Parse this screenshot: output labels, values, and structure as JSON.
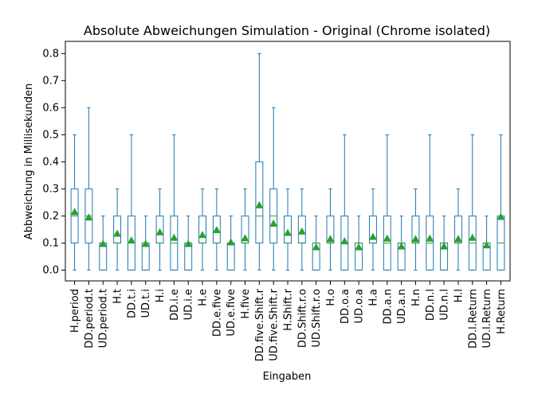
{
  "chart_data": {
    "type": "boxplot",
    "title": "Absolute Abweichungen Simulation - Original (Chrome isolated)",
    "xlabel": "Eingaben",
    "ylabel": "Abbweichung in Millisekunden",
    "ylim": [
      -0.04,
      0.845
    ],
    "yticks": [
      0.0,
      0.1,
      0.2,
      0.3,
      0.4,
      0.5,
      0.6,
      0.7,
      0.8
    ],
    "ytick_labels": [
      "0.0",
      "0.1",
      "0.2",
      "0.3",
      "0.4",
      "0.5",
      "0.6",
      "0.7",
      "0.8"
    ],
    "box_color": "#1f77b4",
    "median_color": "#2ca02c",
    "mean_marker_color": "#2ca02c",
    "categories": [
      "H.period",
      "DD.period.t",
      "UD.period.t",
      "H.t",
      "DD.t.i",
      "UD.t.i",
      "H.i",
      "DD.i.e",
      "UD.i.e",
      "H.e",
      "DD.e.five",
      "UD.e.five",
      "H.five",
      "DD.five.Shift.r",
      "UD.five.Shift.r",
      "H.Shift.r",
      "DD.Shift.r.o",
      "UD.Shift.r.o",
      "H.o",
      "DD.o.a",
      "UD.o.a",
      "H.a",
      "DD.a.n",
      "UD.a.n",
      "H.n",
      "DD.n.l",
      "UD.n.l",
      "H.l",
      "DD.l.Return",
      "UD.l.Return",
      "H.Return"
    ],
    "boxes": [
      {
        "whislo": 0.0,
        "q1": 0.1,
        "med": 0.2,
        "q3": 0.3,
        "whishi": 0.5,
        "mean": 0.215
      },
      {
        "whislo": 0.0,
        "q1": 0.1,
        "med": 0.2,
        "q3": 0.3,
        "whishi": 0.6,
        "mean": 0.195
      },
      {
        "whislo": 0.0,
        "q1": 0.0,
        "med": 0.1,
        "q3": 0.1,
        "whishi": 0.2,
        "mean": 0.097
      },
      {
        "whislo": 0.0,
        "q1": 0.1,
        "med": 0.1,
        "q3": 0.2,
        "whishi": 0.3,
        "mean": 0.135
      },
      {
        "whislo": 0.0,
        "q1": 0.0,
        "med": 0.1,
        "q3": 0.2,
        "whishi": 0.5,
        "mean": 0.11
      },
      {
        "whislo": 0.0,
        "q1": 0.0,
        "med": 0.1,
        "q3": 0.1,
        "whishi": 0.2,
        "mean": 0.097
      },
      {
        "whislo": 0.0,
        "q1": 0.1,
        "med": 0.1,
        "q3": 0.2,
        "whishi": 0.3,
        "mean": 0.14
      },
      {
        "whislo": 0.0,
        "q1": 0.0,
        "med": 0.1,
        "q3": 0.2,
        "whishi": 0.5,
        "mean": 0.12
      },
      {
        "whislo": 0.0,
        "q1": 0.0,
        "med": 0.1,
        "q3": 0.1,
        "whishi": 0.2,
        "mean": 0.097
      },
      {
        "whislo": 0.0,
        "q1": 0.1,
        "med": 0.1,
        "q3": 0.2,
        "whishi": 0.3,
        "mean": 0.13
      },
      {
        "whislo": 0.0,
        "q1": 0.1,
        "med": 0.1,
        "q3": 0.2,
        "whishi": 0.3,
        "mean": 0.148
      },
      {
        "whislo": 0.0,
        "q1": 0.0,
        "med": 0.1,
        "q3": 0.1,
        "whishi": 0.2,
        "mean": 0.103
      },
      {
        "whislo": 0.0,
        "q1": 0.1,
        "med": 0.1,
        "q3": 0.2,
        "whishi": 0.3,
        "mean": 0.118
      },
      {
        "whislo": 0.0,
        "q1": 0.1,
        "med": 0.2,
        "q3": 0.4,
        "whishi": 0.8,
        "mean": 0.24
      },
      {
        "whislo": 0.0,
        "q1": 0.1,
        "med": 0.2,
        "q3": 0.3,
        "whishi": 0.6,
        "mean": 0.172
      },
      {
        "whislo": 0.0,
        "q1": 0.1,
        "med": 0.1,
        "q3": 0.2,
        "whishi": 0.3,
        "mean": 0.138
      },
      {
        "whislo": 0.0,
        "q1": 0.1,
        "med": 0.1,
        "q3": 0.2,
        "whishi": 0.3,
        "mean": 0.143
      },
      {
        "whislo": 0.0,
        "q1": 0.0,
        "med": 0.1,
        "q3": 0.1,
        "whishi": 0.2,
        "mean": 0.085
      },
      {
        "whislo": 0.0,
        "q1": 0.1,
        "med": 0.1,
        "q3": 0.2,
        "whishi": 0.3,
        "mean": 0.115
      },
      {
        "whislo": 0.0,
        "q1": 0.0,
        "med": 0.1,
        "q3": 0.2,
        "whishi": 0.5,
        "mean": 0.107
      },
      {
        "whislo": 0.0,
        "q1": 0.0,
        "med": 0.1,
        "q3": 0.1,
        "whishi": 0.2,
        "mean": 0.085
      },
      {
        "whislo": 0.0,
        "q1": 0.1,
        "med": 0.1,
        "q3": 0.2,
        "whishi": 0.3,
        "mean": 0.123
      },
      {
        "whislo": 0.0,
        "q1": 0.0,
        "med": 0.1,
        "q3": 0.2,
        "whishi": 0.5,
        "mean": 0.117
      },
      {
        "whislo": 0.0,
        "q1": 0.0,
        "med": 0.1,
        "q3": 0.1,
        "whishi": 0.2,
        "mean": 0.088
      },
      {
        "whislo": 0.0,
        "q1": 0.1,
        "med": 0.1,
        "q3": 0.2,
        "whishi": 0.3,
        "mean": 0.115
      },
      {
        "whislo": 0.0,
        "q1": 0.0,
        "med": 0.1,
        "q3": 0.2,
        "whishi": 0.5,
        "mean": 0.117
      },
      {
        "whislo": 0.0,
        "q1": 0.0,
        "med": 0.1,
        "q3": 0.1,
        "whishi": 0.2,
        "mean": 0.088
      },
      {
        "whislo": 0.0,
        "q1": 0.1,
        "med": 0.1,
        "q3": 0.2,
        "whishi": 0.3,
        "mean": 0.115
      },
      {
        "whislo": 0.0,
        "q1": 0.0,
        "med": 0.1,
        "q3": 0.2,
        "whishi": 0.5,
        "mean": 0.12
      },
      {
        "whislo": 0.0,
        "q1": 0.0,
        "med": 0.1,
        "q3": 0.1,
        "whishi": 0.2,
        "mean": 0.092
      },
      {
        "whislo": 0.0,
        "q1": 0.0,
        "med": 0.1,
        "q3": 0.2,
        "whishi": 0.5,
        "mean": 0.197
      }
    ]
  }
}
